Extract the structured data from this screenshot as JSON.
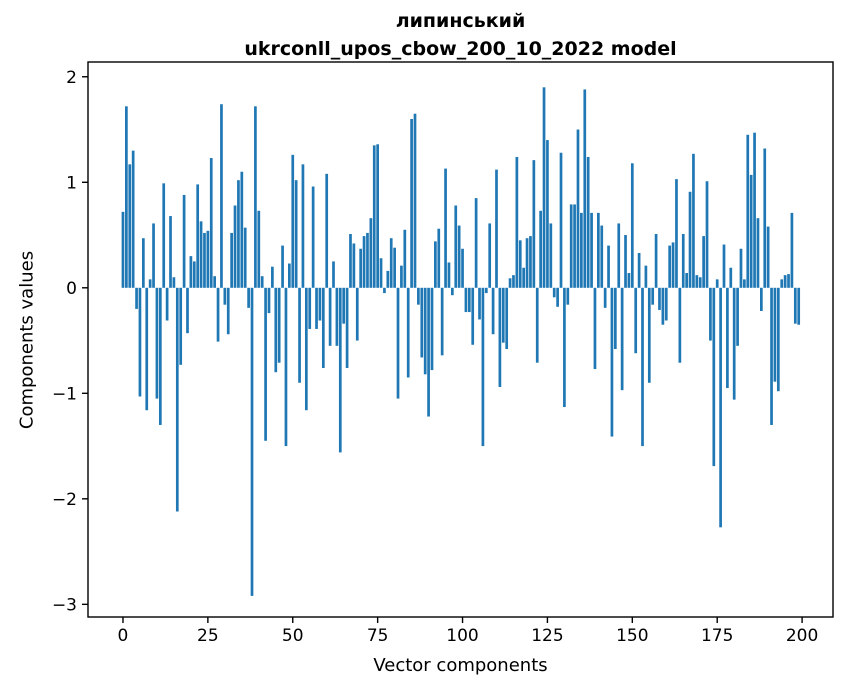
{
  "figure": {
    "title_line1": "липинський",
    "title_line2": "ukrconll_upos_cbow_200_10_2022 model"
  },
  "chart_data": {
    "type": "bar",
    "title": "липинський",
    "subtitle": "ukrconll_upos_cbow_200_10_2022 model",
    "xlabel": "Vector components",
    "ylabel": "Components values",
    "bar_color": "#1f77b4",
    "axis_color": "#000000",
    "grid": false,
    "legend": null,
    "x_ticks": [
      0,
      25,
      50,
      75,
      100,
      125,
      150,
      175,
      200
    ],
    "y_ticks": [
      2,
      1,
      0,
      -1,
      -2,
      -3
    ],
    "xlim": [
      -10.3,
      209.1
    ],
    "ylim": [
      -3.12,
      2.14
    ],
    "x_range": [
      0,
      199
    ],
    "values": [
      0.72,
      1.72,
      1.17,
      1.3,
      -0.2,
      -1.03,
      0.47,
      -1.16,
      0.08,
      0.61,
      -1.05,
      -1.3,
      0.99,
      -0.31,
      0.68,
      0.1,
      -2.12,
      -0.73,
      0.88,
      -0.43,
      0.3,
      0.25,
      0.98,
      0.63,
      0.52,
      0.54,
      1.23,
      0.11,
      -0.51,
      1.74,
      -0.16,
      -0.44,
      0.52,
      0.78,
      1.02,
      1.1,
      0.57,
      -0.19,
      -2.92,
      1.72,
      0.73,
      0.11,
      -1.45,
      -0.24,
      0.2,
      -0.8,
      -0.71,
      0.4,
      -1.5,
      0.23,
      1.26,
      1.02,
      -0.9,
      1.17,
      -1.16,
      -0.39,
      0.96,
      -0.39,
      -0.31,
      -0.76,
      1.08,
      -0.55,
      0.25,
      -0.55,
      -1.56,
      -0.34,
      -0.76,
      0.51,
      0.42,
      -0.5,
      0.37,
      0.49,
      0.52,
      0.66,
      1.35,
      1.36,
      0.28,
      -0.05,
      0.16,
      0.47,
      0.38,
      -1.05,
      0.21,
      0.55,
      -0.85,
      1.6,
      1.65,
      -0.16,
      -0.66,
      -0.82,
      -1.22,
      -0.78,
      0.44,
      0.56,
      -0.64,
      1.13,
      0.24,
      -0.07,
      0.78,
      0.59,
      0.37,
      -0.23,
      -0.23,
      -0.54,
      0.85,
      -0.3,
      -1.5,
      -0.05,
      0.61,
      -0.44,
      1.12,
      -0.94,
      -0.52,
      -0.58,
      0.09,
      0.12,
      1.24,
      0.45,
      0.19,
      0.47,
      0.49,
      1.21,
      -0.71,
      0.73,
      1.9,
      1.4,
      0.61,
      -0.09,
      -0.18,
      1.28,
      -1.13,
      -0.16,
      0.79,
      0.79,
      1.5,
      0.71,
      1.88,
      1.24,
      0.71,
      -0.77,
      0.71,
      0.59,
      -0.19,
      0.4,
      -1.41,
      -0.58,
      0.61,
      -0.97,
      0.5,
      0.14,
      1.18,
      -0.62,
      0.33,
      -1.5,
      0.21,
      -0.9,
      -0.16,
      0.51,
      -0.21,
      -0.35,
      -0.31,
      0.4,
      0.43,
      1.03,
      -0.71,
      0.51,
      0.14,
      0.91,
      1.27,
      0.12,
      0.1,
      0.49,
      1.01,
      -0.5,
      -1.69,
      0.08,
      -2.27,
      0.41,
      -0.95,
      0.19,
      -1.06,
      -0.55,
      0.37,
      0.08,
      1.45,
      1.07,
      1.47,
      0.66,
      -0.22,
      1.32,
      0.58,
      -1.3,
      -0.89,
      -0.98,
      0.08,
      0.12,
      0.13,
      0.71,
      -0.34,
      -0.35
    ]
  }
}
